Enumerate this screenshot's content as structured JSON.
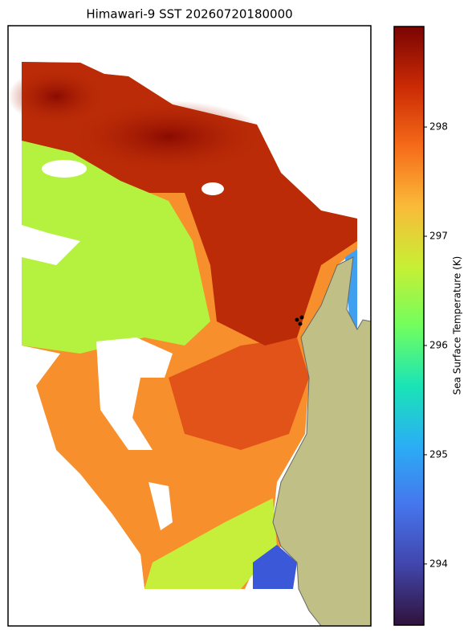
{
  "map": {
    "title": "Himawari-9 SST 20260720180000",
    "colorbar": {
      "label": "Sea Surface Temperature (K)",
      "lim": [
        293.44,
        298.92
      ],
      "ticks": [
        294,
        295,
        296,
        297,
        298
      ]
    }
  }
}
